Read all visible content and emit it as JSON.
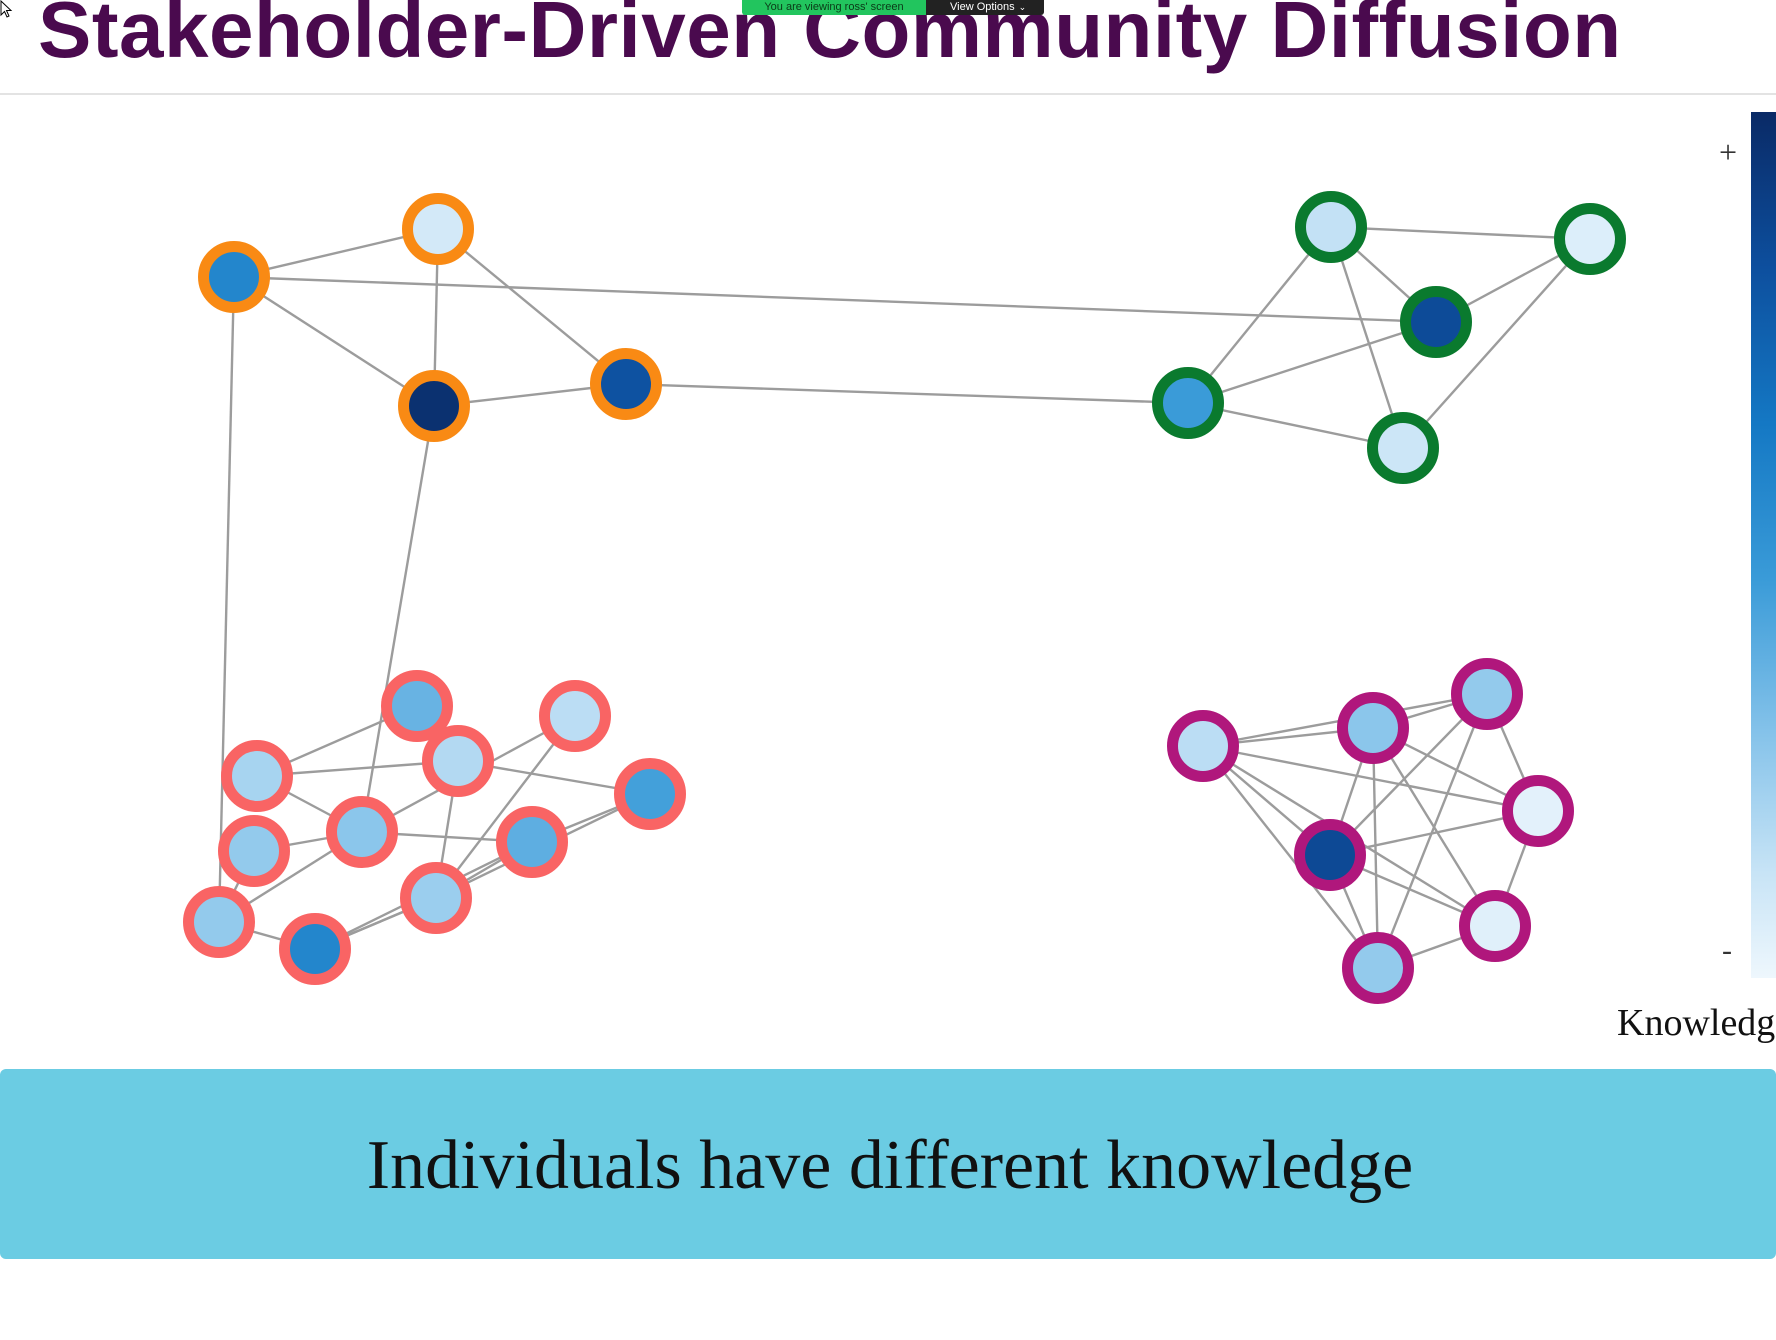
{
  "slide": {
    "title": "Stakeholder-Driven Community Diffusion",
    "caption": "Individuals have different knowledge"
  },
  "screen_share": {
    "notice": "You are viewing ross' screen",
    "view_options_label": "View Options"
  },
  "colorbar": {
    "plus_label": "+",
    "minus_label": "-",
    "label": "Knowledg",
    "colors": [
      "#0a2a66",
      "#0d4f9e",
      "#1478c4",
      "#3a9bd8",
      "#86c3ea",
      "#c8e4f6",
      "#eef7fd"
    ]
  },
  "communities": [
    {
      "name": "orange",
      "ring_color": "#f98a14"
    },
    {
      "name": "green",
      "ring_color": "#0a7a2e"
    },
    {
      "name": "coral",
      "ring_color": "#f96464"
    },
    {
      "name": "magenta",
      "ring_color": "#b0177c"
    }
  ],
  "nodes": [
    {
      "id": "o1",
      "community": "orange",
      "knowledge": 0.6
    },
    {
      "id": "o2",
      "community": "orange",
      "knowledge": 0.12
    },
    {
      "id": "o3",
      "community": "orange",
      "knowledge": 0.97
    },
    {
      "id": "o4",
      "community": "orange",
      "knowledge": 0.82
    },
    {
      "id": "g1",
      "community": "green",
      "knowledge": 0.18
    },
    {
      "id": "g2",
      "community": "green",
      "knowledge": 0.08
    },
    {
      "id": "g3",
      "community": "green",
      "knowledge": 0.85
    },
    {
      "id": "g4",
      "community": "green",
      "knowledge": 0.5
    },
    {
      "id": "g5",
      "community": "green",
      "knowledge": 0.15
    },
    {
      "id": "r1",
      "community": "coral",
      "knowledge": 0.25
    },
    {
      "id": "r2",
      "community": "coral",
      "knowledge": 0.4
    },
    {
      "id": "r3",
      "community": "coral",
      "knowledge": 0.2
    },
    {
      "id": "r4",
      "community": "coral",
      "knowledge": 0.22
    },
    {
      "id": "r5",
      "community": "coral",
      "knowledge": 0.48
    },
    {
      "id": "r6",
      "community": "coral",
      "knowledge": 0.32
    },
    {
      "id": "r7",
      "community": "coral",
      "knowledge": 0.3
    },
    {
      "id": "r8",
      "community": "coral",
      "knowledge": 0.42
    },
    {
      "id": "r9",
      "community": "coral",
      "knowledge": 0.28
    },
    {
      "id": "r10",
      "community": "coral",
      "knowledge": 0.3
    },
    {
      "id": "r11",
      "community": "coral",
      "knowledge": 0.6
    },
    {
      "id": "m1",
      "community": "magenta",
      "knowledge": 0.3
    },
    {
      "id": "m2",
      "community": "magenta",
      "knowledge": 0.2
    },
    {
      "id": "m3",
      "community": "magenta",
      "knowledge": 0.32
    },
    {
      "id": "m4",
      "community": "magenta",
      "knowledge": 0.05
    },
    {
      "id": "m5",
      "community": "magenta",
      "knowledge": 0.86
    },
    {
      "id": "m6",
      "community": "magenta",
      "knowledge": 0.06
    },
    {
      "id": "m7",
      "community": "magenta",
      "knowledge": 0.3
    }
  ],
  "edges": [
    [
      "o1",
      "o2"
    ],
    [
      "o1",
      "o3"
    ],
    [
      "o2",
      "o3"
    ],
    [
      "o2",
      "o4"
    ],
    [
      "o3",
      "o4"
    ],
    [
      "o1",
      "g3"
    ],
    [
      "o4",
      "g4"
    ],
    [
      "o1",
      "r10"
    ],
    [
      "o3",
      "r6"
    ],
    [
      "g1",
      "g2"
    ],
    [
      "g1",
      "g3"
    ],
    [
      "g1",
      "g4"
    ],
    [
      "g1",
      "g5"
    ],
    [
      "g2",
      "g3"
    ],
    [
      "g2",
      "g5"
    ],
    [
      "g3",
      "g4"
    ],
    [
      "g4",
      "g5"
    ],
    [
      "r1",
      "r4"
    ],
    [
      "r1",
      "r2"
    ],
    [
      "r1",
      "r6"
    ],
    [
      "r2",
      "r4"
    ],
    [
      "r4",
      "r5"
    ],
    [
      "r4",
      "r9"
    ],
    [
      "r3",
      "r9"
    ],
    [
      "r3",
      "r6"
    ],
    [
      "r5",
      "r9"
    ],
    [
      "r5",
      "r8"
    ],
    [
      "r6",
      "r7"
    ],
    [
      "r6",
      "r10"
    ],
    [
      "r6",
      "r8"
    ],
    [
      "r7",
      "r10"
    ],
    [
      "r9",
      "r8"
    ],
    [
      "r9",
      "r11"
    ],
    [
      "r10",
      "r11"
    ],
    [
      "r11",
      "r8"
    ],
    [
      "r11",
      "r9"
    ],
    [
      "m1",
      "m2"
    ],
    [
      "m1",
      "m3"
    ],
    [
      "m1",
      "m4"
    ],
    [
      "m1",
      "m5"
    ],
    [
      "m1",
      "m7"
    ],
    [
      "m2",
      "m3"
    ],
    [
      "m2",
      "m4"
    ],
    [
      "m2",
      "m5"
    ],
    [
      "m2",
      "m6"
    ],
    [
      "m2",
      "m7"
    ],
    [
      "m3",
      "m4"
    ],
    [
      "m3",
      "m5"
    ],
    [
      "m3",
      "m6"
    ],
    [
      "m3",
      "m7"
    ],
    [
      "m4",
      "m5"
    ],
    [
      "m4",
      "m6"
    ],
    [
      "m5",
      "m6"
    ],
    [
      "m5",
      "m7"
    ],
    [
      "m6",
      "m7"
    ]
  ]
}
